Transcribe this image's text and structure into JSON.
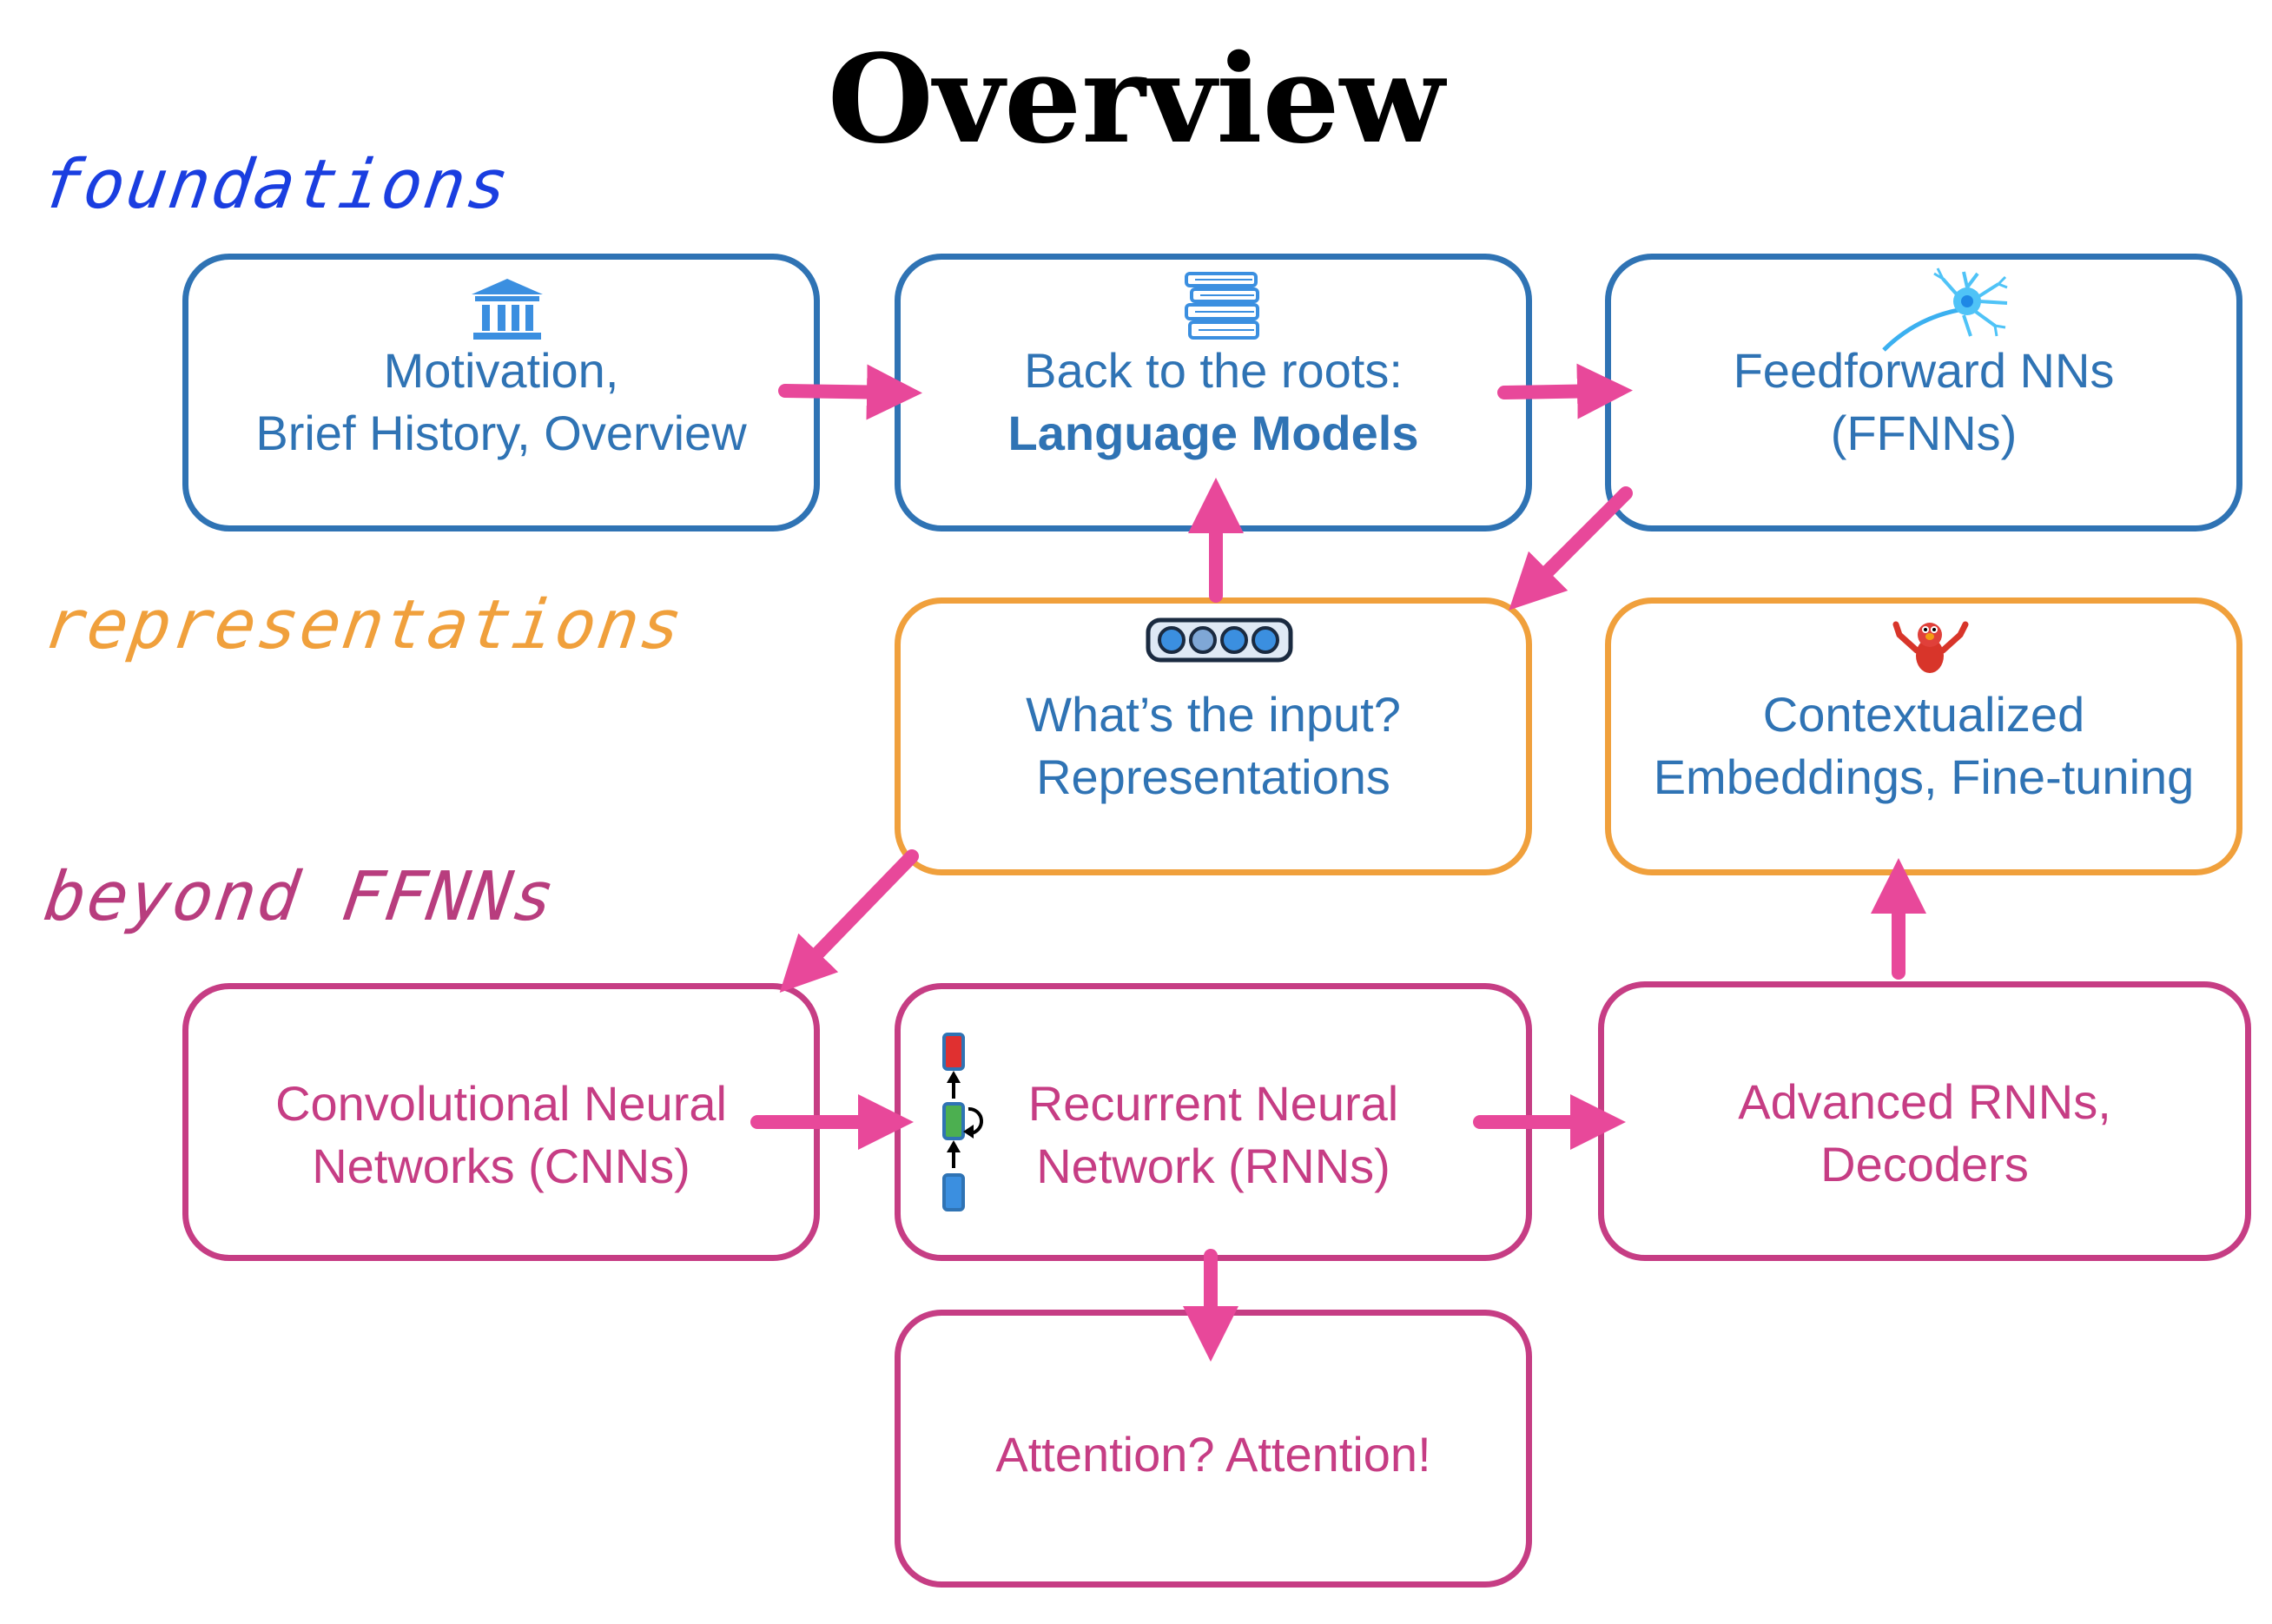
{
  "title": "Overview",
  "sections": {
    "foundations": "foundations",
    "representations": "representations",
    "beyond": "beyond FFNNs"
  },
  "boxes": {
    "motivation": {
      "line1": "Motivation,",
      "line2": "Brief History, Overview",
      "icon": "museum-icon"
    },
    "back_to_roots": {
      "line1": "Back to the roots:",
      "line2": "Language Models",
      "icon": "books-icon"
    },
    "ffnn": {
      "line1": "Feedforward NNs",
      "line2": "(FFNNs)",
      "icon": "neuron-icon"
    },
    "input": {
      "line1": "What’s the input?",
      "line2": "Representations",
      "icon": "vector-icon"
    },
    "contextualized": {
      "line1": "Contextualized",
      "line2": "Embeddings, Fine-tuning",
      "icon": "elmo-icon"
    },
    "cnn": {
      "line1": "Convolutional Neural",
      "line2": "Networks (CNNs)"
    },
    "rnn": {
      "line1": "Recurrent Neural",
      "line2": "Network (RNNs)",
      "icon": "rnn-cell-icon"
    },
    "advanced_rnn": {
      "line1": "Advanced RNNs,",
      "line2": "Decoders"
    },
    "attention": {
      "line1": "Attention? Attention!"
    }
  },
  "colors": {
    "foundations": "#1a3ee0",
    "representations": "#f0a03c",
    "beyond": "#b83d7e",
    "blue_box": "#2f73b4",
    "orange_box": "#f0a03c",
    "pink_box": "#c63d84",
    "arrow": "#e8489a"
  }
}
